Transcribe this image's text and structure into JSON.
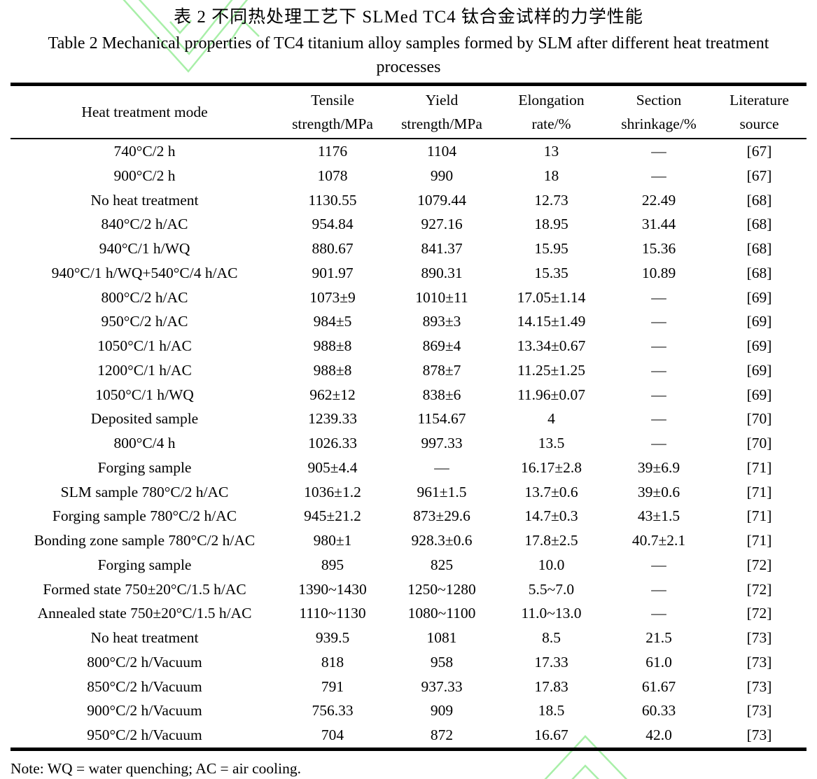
{
  "titles": {
    "chinese": "表 2 不同热处理工艺下 SLMed TC4 钛合金试样的力学性能",
    "english_line1": "Table 2 Mechanical properties of TC4 titanium alloy samples formed by SLM after different heat treatment",
    "english_line2": "processes"
  },
  "table": {
    "columns": [
      {
        "line1": "Heat treatment mode",
        "line2": ""
      },
      {
        "line1": "Tensile",
        "line2": "strength/MPa"
      },
      {
        "line1": "Yield",
        "line2": "strength/MPa"
      },
      {
        "line1": "Elongation",
        "line2": "rate/%"
      },
      {
        "line1": "Section",
        "line2": "shrinkage/%"
      },
      {
        "line1": "Literature",
        "line2": "source"
      }
    ],
    "rows": [
      [
        "740°C/2 h",
        "1176",
        "1104",
        "13",
        "—",
        "[67]"
      ],
      [
        "900°C/2 h",
        "1078",
        "990",
        "18",
        "—",
        "[67]"
      ],
      [
        "No heat treatment",
        "1130.55",
        "1079.44",
        "12.73",
        "22.49",
        "[68]"
      ],
      [
        "840°C/2 h/AC",
        "954.84",
        "927.16",
        "18.95",
        "31.44",
        "[68]"
      ],
      [
        "940°C/1 h/WQ",
        "880.67",
        "841.37",
        "15.95",
        "15.36",
        "[68]"
      ],
      [
        "940°C/1 h/WQ+540°C/4 h/AC",
        "901.97",
        "890.31",
        "15.35",
        "10.89",
        "[68]"
      ],
      [
        "800°C/2 h/AC",
        "1073±9",
        "1010±11",
        "17.05±1.14",
        "—",
        "[69]"
      ],
      [
        "950°C/2 h/AC",
        "984±5",
        "893±3",
        "14.15±1.49",
        "—",
        "[69]"
      ],
      [
        "1050°C/1 h/AC",
        "988±8",
        "869±4",
        "13.34±0.67",
        "—",
        "[69]"
      ],
      [
        "1200°C/1 h/AC",
        "988±8",
        "878±7",
        "11.25±1.25",
        "—",
        "[69]"
      ],
      [
        "1050°C/1 h/WQ",
        "962±12",
        "838±6",
        "11.96±0.07",
        "—",
        "[69]"
      ],
      [
        "Deposited sample",
        "1239.33",
        "1154.67",
        "4",
        "—",
        "[70]"
      ],
      [
        "800°C/4 h",
        "1026.33",
        "997.33",
        "13.5",
        "—",
        "[70]"
      ],
      [
        "Forging sample",
        "905±4.4",
        "—",
        "16.17±2.8",
        "39±6.9",
        "[71]"
      ],
      [
        "SLM sample 780°C/2 h/AC",
        "1036±1.2",
        "961±1.5",
        "13.7±0.6",
        "39±0.6",
        "[71]"
      ],
      [
        "Forging sample 780°C/2 h/AC",
        "945±21.2",
        "873±29.6",
        "14.7±0.3",
        "43±1.5",
        "[71]"
      ],
      [
        "Bonding zone sample 780°C/2 h/AC",
        "980±1",
        "928.3±0.6",
        "17.8±2.5",
        "40.7±2.1",
        "[71]"
      ],
      [
        "Forging sample",
        "895",
        "825",
        "10.0",
        "—",
        "[72]"
      ],
      [
        "Formed state 750±20°C/1.5 h/AC",
        "1390~1430",
        "1250~1280",
        "5.5~7.0",
        "—",
        "[72]"
      ],
      [
        "Annealed state 750±20°C/1.5 h/AC",
        "1110~1130",
        "1080~1100",
        "11.0~13.0",
        "—",
        "[72]"
      ],
      [
        "No heat treatment",
        "939.5",
        "1081",
        "8.5",
        "21.5",
        "[73]"
      ],
      [
        "800°C/2 h/Vacuum",
        "818",
        "958",
        "17.33",
        "61.0",
        "[73]"
      ],
      [
        "850°C/2 h/Vacuum",
        "791",
        "937.33",
        "17.83",
        "61.67",
        "[73]"
      ],
      [
        "900°C/2 h/Vacuum",
        "756.33",
        "909",
        "18.5",
        "60.33",
        "[73]"
      ],
      [
        "950°C/2 h/Vacuum",
        "704",
        "872",
        "16.67",
        "42.0",
        "[73]"
      ]
    ]
  },
  "note": "Note: WQ = water quenching; AC = air cooling.",
  "colors": {
    "watermark_green": "#a8efa8",
    "text": "#000000",
    "rule": "#000000"
  }
}
